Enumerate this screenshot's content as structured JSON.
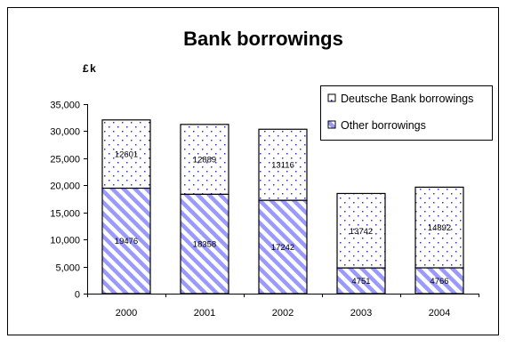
{
  "chart_data": {
    "type": "bar",
    "stacked": true,
    "title": "Bank borrowings",
    "ylabel": "£k",
    "xlabel": "",
    "categories": [
      "2000",
      "2001",
      "2002",
      "2003",
      "2004"
    ],
    "ylim": [
      0,
      35000
    ],
    "yticks": [
      0,
      5000,
      10000,
      15000,
      20000,
      25000,
      30000,
      35000
    ],
    "ytick_labels": [
      "0",
      "5,000",
      "10,000",
      "15,000",
      "20,000",
      "25,000",
      "30,000",
      "35,000"
    ],
    "grid": false,
    "legend_position": "top-right",
    "series": [
      {
        "name": "Other borrowings",
        "values": [
          19476,
          18358,
          17242,
          4751,
          4766
        ],
        "fill": "hatched-diagonal",
        "color": "#9999ff"
      },
      {
        "name": "Deutsche Bank borrowings",
        "values": [
          12601,
          12889,
          13116,
          13742,
          14892
        ],
        "fill": "dotted",
        "color": "#3333cc"
      }
    ],
    "legend_order": [
      1,
      0
    ]
  }
}
